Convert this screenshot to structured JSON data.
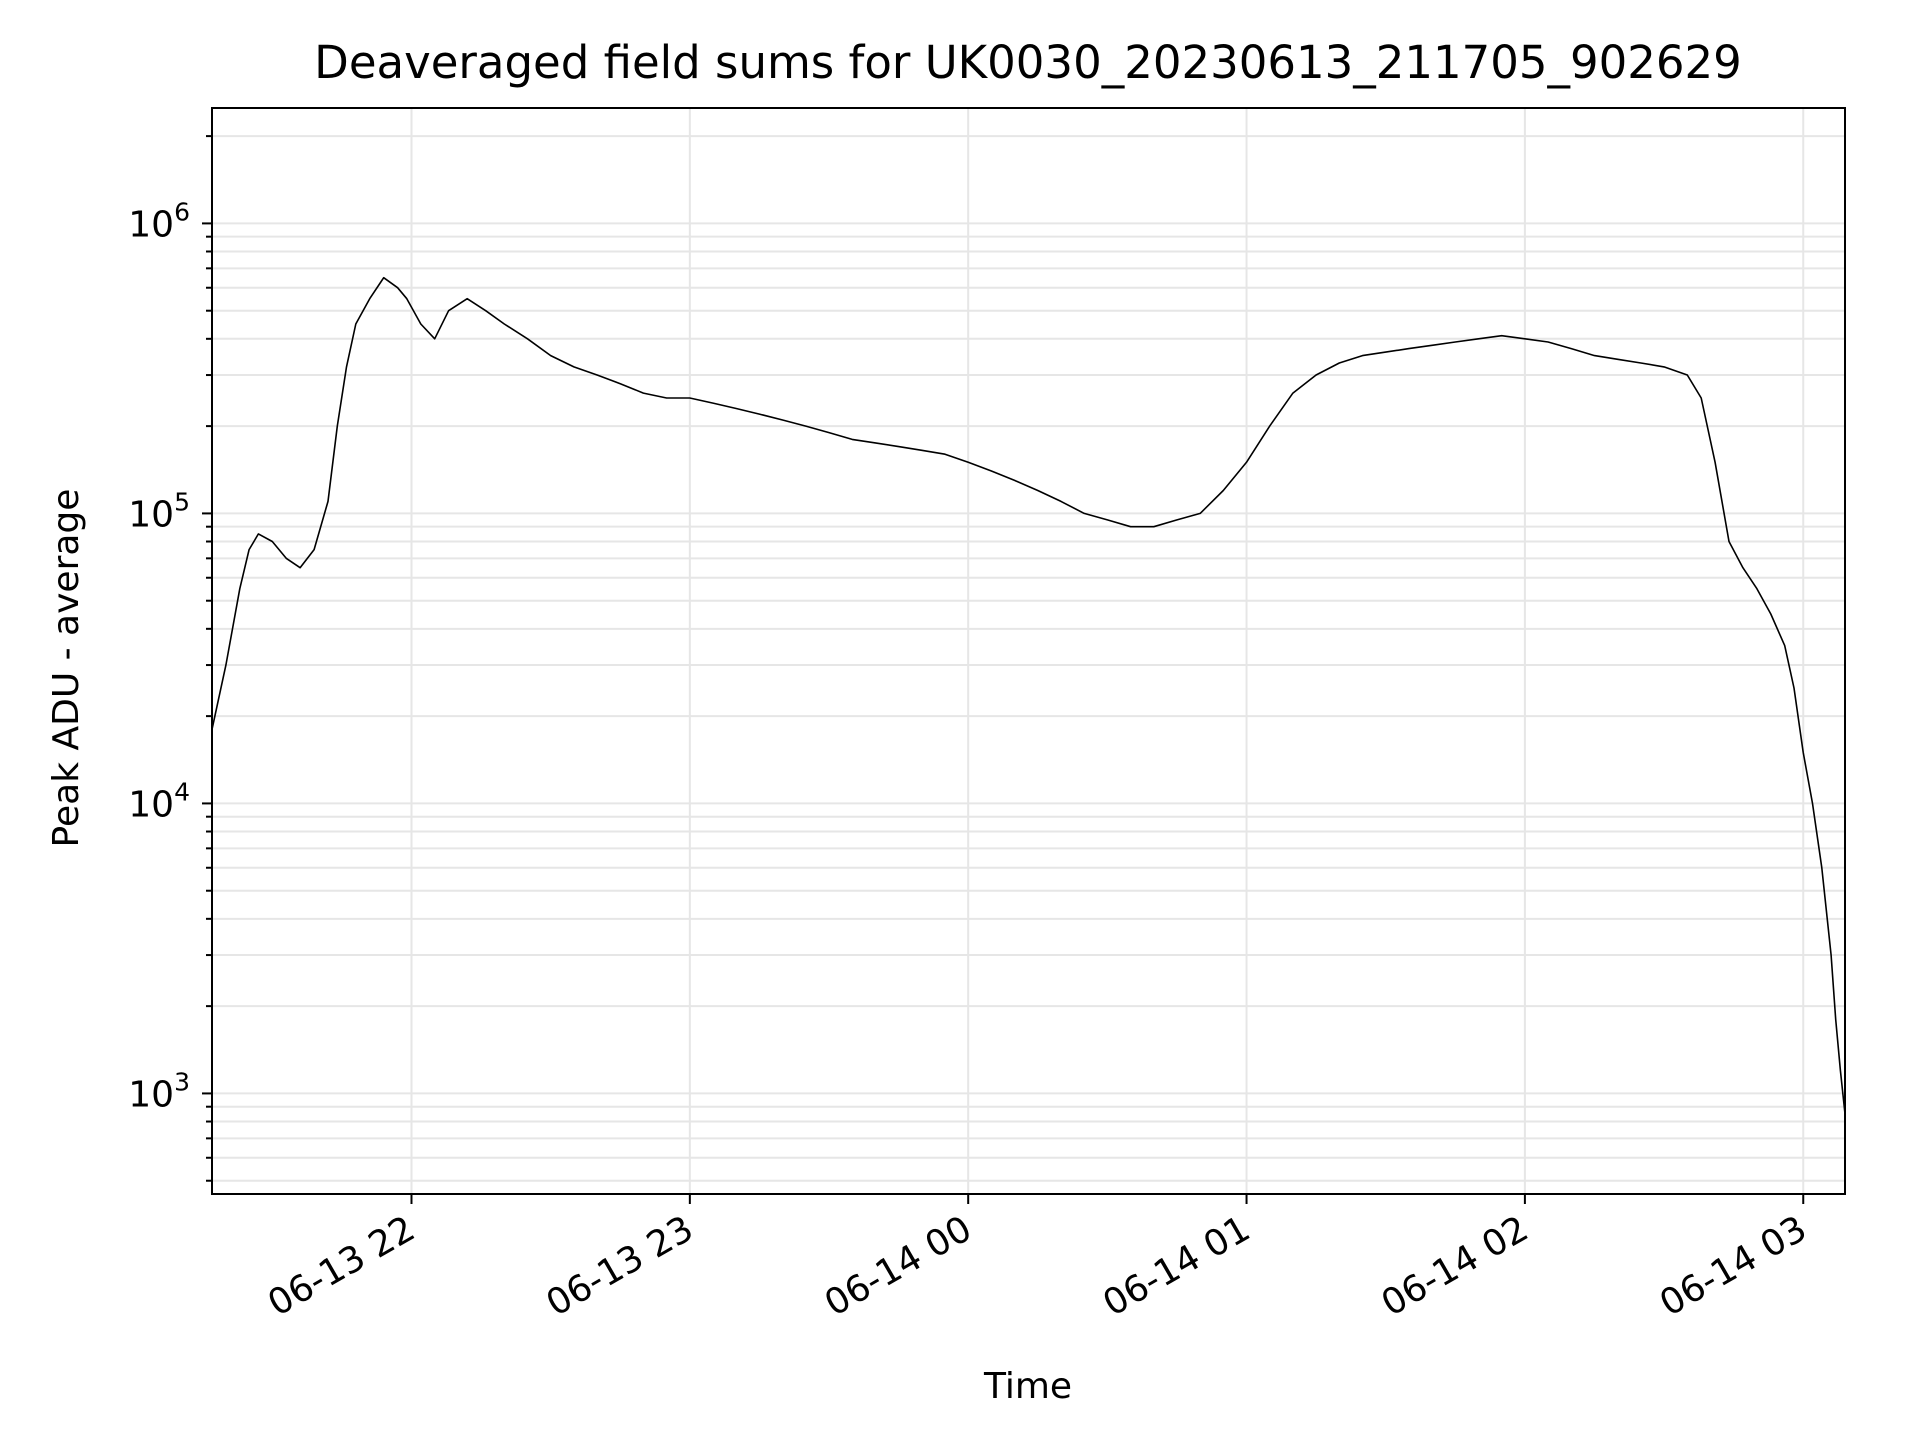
{
  "chart_data": {
    "type": "line",
    "title": "Deaveraged field sums for UK0030_20230613_211705_902629",
    "xlabel": "Time",
    "ylabel": "Peak ADU - average",
    "yscale": "log",
    "ylim": [
      450,
      2500000
    ],
    "xlim": [
      "2023-06-13 21:17",
      "2023-06-14 03:09"
    ],
    "grid": true,
    "line_color": "#000000",
    "grid_color": "#e6e6e6",
    "x_ticks": [
      "2023-06-13 22:00",
      "2023-06-13 23:00",
      "2023-06-14 00:00",
      "2023-06-14 01:00",
      "2023-06-14 02:00",
      "2023-06-14 03:00"
    ],
    "x_tick_labels": [
      "06-13 22",
      "06-13 23",
      "06-14 00",
      "06-14 01",
      "06-14 02",
      "06-14 03"
    ],
    "y_ticks": [
      {
        "value": 1000,
        "base": "10",
        "exp": "3"
      },
      {
        "value": 10000,
        "base": "10",
        "exp": "4"
      },
      {
        "value": 100000,
        "base": "10",
        "exp": "5"
      },
      {
        "value": 1000000,
        "base": "10",
        "exp": "6"
      }
    ],
    "series": [
      {
        "x": [
          "2023-06-13 21:17",
          "2023-06-13 21:20",
          "2023-06-13 21:23",
          "2023-06-13 21:25",
          "2023-06-13 21:27",
          "2023-06-13 21:30",
          "2023-06-13 21:33",
          "2023-06-13 21:36",
          "2023-06-13 21:39",
          "2023-06-13 21:42",
          "2023-06-13 21:44",
          "2023-06-13 21:46",
          "2023-06-13 21:48",
          "2023-06-13 21:51",
          "2023-06-13 21:54",
          "2023-06-13 21:57",
          "2023-06-13 21:59",
          "2023-06-13 22:02",
          "2023-06-13 22:05",
          "2023-06-13 22:08",
          "2023-06-13 22:12",
          "2023-06-13 22:16",
          "2023-06-13 22:20",
          "2023-06-13 22:25",
          "2023-06-13 22:30",
          "2023-06-13 22:35",
          "2023-06-13 22:40",
          "2023-06-13 22:45",
          "2023-06-13 22:50",
          "2023-06-13 22:55",
          "2023-06-13 23:00",
          "2023-06-13 23:05",
          "2023-06-13 23:10",
          "2023-06-13 23:15",
          "2023-06-13 23:20",
          "2023-06-13 23:25",
          "2023-06-13 23:30",
          "2023-06-13 23:35",
          "2023-06-13 23:40",
          "2023-06-13 23:45",
          "2023-06-13 23:50",
          "2023-06-13 23:55",
          "2023-06-14 00:00",
          "2023-06-14 00:05",
          "2023-06-14 00:10",
          "2023-06-14 00:15",
          "2023-06-14 00:20",
          "2023-06-14 00:25",
          "2023-06-14 00:30",
          "2023-06-14 00:35",
          "2023-06-14 00:40",
          "2023-06-14 00:45",
          "2023-06-14 00:50",
          "2023-06-14 00:55",
          "2023-06-14 01:00",
          "2023-06-14 01:05",
          "2023-06-14 01:10",
          "2023-06-14 01:15",
          "2023-06-14 01:20",
          "2023-06-14 01:25",
          "2023-06-14 01:30",
          "2023-06-14 01:35",
          "2023-06-14 01:40",
          "2023-06-14 01:45",
          "2023-06-14 01:50",
          "2023-06-14 01:55",
          "2023-06-14 02:00",
          "2023-06-14 02:05",
          "2023-06-14 02:10",
          "2023-06-14 02:15",
          "2023-06-14 02:20",
          "2023-06-14 02:25",
          "2023-06-14 02:30",
          "2023-06-14 02:35",
          "2023-06-14 02:38",
          "2023-06-14 02:41",
          "2023-06-14 02:44",
          "2023-06-14 02:47",
          "2023-06-14 02:50",
          "2023-06-14 02:53",
          "2023-06-14 02:56",
          "2023-06-14 02:58",
          "2023-06-14 03:00",
          "2023-06-14 03:02",
          "2023-06-14 03:04",
          "2023-06-14 03:06",
          "2023-06-14 03:07",
          "2023-06-14 03:08",
          "2023-06-14 03:09"
        ],
        "y": [
          18000,
          30000,
          55000,
          75000,
          85000,
          80000,
          70000,
          65000,
          75000,
          110000,
          200000,
          320000,
          450000,
          550000,
          650000,
          600000,
          550000,
          450000,
          400000,
          500000,
          550000,
          500000,
          450000,
          400000,
          350000,
          320000,
          300000,
          280000,
          260000,
          250000,
          250000,
          240000,
          230000,
          220000,
          210000,
          200000,
          190000,
          180000,
          175000,
          170000,
          165000,
          160000,
          150000,
          140000,
          130000,
          120000,
          110000,
          100000,
          95000,
          90000,
          90000,
          95000,
          100000,
          120000,
          150000,
          200000,
          260000,
          300000,
          330000,
          350000,
          360000,
          370000,
          380000,
          390000,
          400000,
          410000,
          400000,
          390000,
          370000,
          350000,
          340000,
          330000,
          320000,
          300000,
          250000,
          150000,
          80000,
          65000,
          55000,
          45000,
          35000,
          25000,
          15000,
          10000,
          6000,
          3000,
          1800,
          1200,
          850
        ]
      }
    ]
  }
}
